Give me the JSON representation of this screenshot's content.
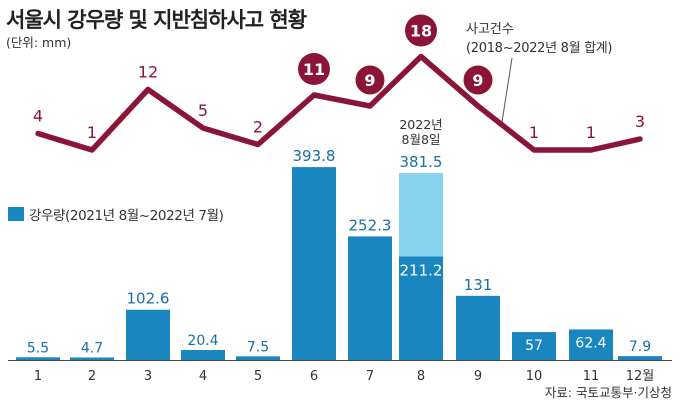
{
  "header": {
    "title": "서울시 강우량 및 지반침하사고 현황",
    "unit": "(단위: mm)"
  },
  "annotation": {
    "line1": "사고건수",
    "line2": "(2018~2022년 8월 합계)"
  },
  "legend": {
    "label": "강우량(2021년 8월~2022년 7월)"
  },
  "source": "자료: 국토교통부·기상청",
  "colors": {
    "bar": "#1a86c0",
    "bar_highlight": "#87d2ec",
    "line": "#8a1538",
    "bar_label_dark": "#1a6fa8",
    "bar_label_light": "#ffffff"
  },
  "chart_data": [
    {
      "type": "bar",
      "categories": [
        "1",
        "2",
        "3",
        "4",
        "5",
        "6",
        "7",
        "8",
        "9",
        "10",
        "11",
        "12월"
      ],
      "values": [
        5.5,
        4.7,
        102.6,
        20.4,
        7.5,
        393.8,
        252.3,
        381.5,
        131,
        57,
        62.4,
        7.9
      ],
      "value_labels": [
        "5.5",
        "4.7",
        "102.6",
        "20.4",
        "7.5",
        "393.8",
        "252.3",
        "381.5",
        "131",
        "57",
        "62.4",
        "7.9"
      ],
      "highlight": {
        "category": "8",
        "part_value": 211.2,
        "part_label": "211.2",
        "note": [
          "2022년",
          "8월8일"
        ]
      },
      "series_name": "강우량(2021년 8월~2022년 7월)"
    },
    {
      "type": "line",
      "categories": [
        "1",
        "2",
        "3",
        "4",
        "5",
        "6",
        "7",
        "8",
        "9",
        "10",
        "11",
        "12월"
      ],
      "values": [
        4,
        1,
        12,
        5,
        2,
        11,
        9,
        18,
        9,
        1,
        1,
        3
      ],
      "value_labels": [
        "4",
        "1",
        "12",
        "5",
        "2",
        "11",
        "9",
        "18",
        "9",
        "1",
        "1",
        "3"
      ],
      "circled": [
        "11",
        "9",
        "18"
      ],
      "series_name": "사고건수"
    }
  ]
}
